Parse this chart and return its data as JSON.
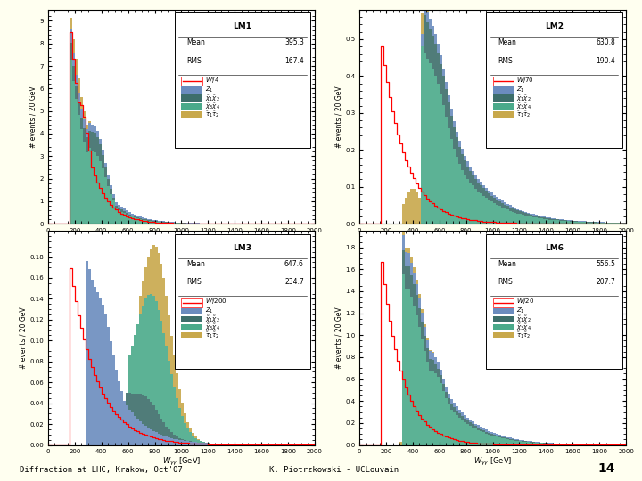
{
  "panels": [
    {
      "label": "LM1",
      "mean": "395.3",
      "rms": "167.4",
      "signal_label": "W' / 4",
      "ylim": [
        0,
        9.5
      ],
      "yticks": [
        0,
        1,
        2,
        3,
        4,
        5,
        6,
        7,
        8,
        9
      ],
      "colors": [
        "#6b8cbe",
        "#3d6e6a",
        "#4aaa8a",
        "#c8a84b"
      ]
    },
    {
      "label": "LM2",
      "mean": "630.8",
      "rms": "190.4",
      "signal_label": "W' / 70",
      "ylim": [
        0,
        0.58
      ],
      "yticks": [
        0,
        0.1,
        0.2,
        0.3,
        0.4,
        0.5
      ],
      "colors": [
        "#6b8cbe",
        "#3d6e6a",
        "#4aaa8a",
        "#c8a84b"
      ]
    },
    {
      "label": "LM3",
      "mean": "647.6",
      "rms": "234.7",
      "signal_label": "W' / 200",
      "ylim": [
        0,
        0.205
      ],
      "yticks": [
        0,
        0.02,
        0.04,
        0.06,
        0.08,
        0.1,
        0.12,
        0.14,
        0.16,
        0.18
      ],
      "colors": [
        "#6b8cbe",
        "#3d6e6a",
        "#4aaa8a",
        "#c8a84b"
      ]
    },
    {
      "label": "LM6",
      "mean": "556.5",
      "rms": "207.7",
      "signal_label": "W' / 20",
      "ylim": [
        0,
        1.95
      ],
      "yticks": [
        0,
        0.2,
        0.4,
        0.6,
        0.8,
        1.0,
        1.2,
        1.4,
        1.6,
        1.8
      ],
      "colors": [
        "#6b8cbe",
        "#3d6e6a",
        "#4aaa8a",
        "#c8a84b"
      ]
    }
  ],
  "bg_color": "#fffff0",
  "plot_bg": "#ffffff",
  "footer_left": "Diffraction at LHC, Krakow, Oct'07",
  "footer_mid": "K. Piotrzkowski - UCLouvain",
  "footer_page": "14"
}
